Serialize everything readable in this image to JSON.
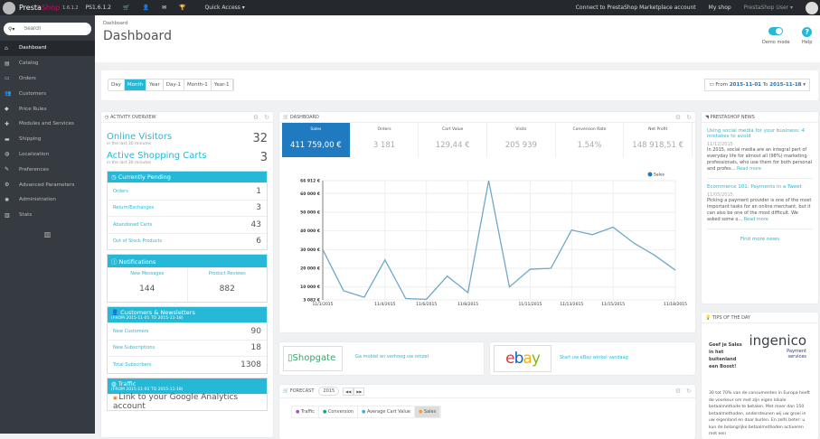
{
  "topbar": {
    "brand_a": "Presta",
    "brand_b": "Shop",
    "version": "1.6.1.2",
    "shop_label": "PS1.6.1.2",
    "quick_access": "Quick Access ▾",
    "connect": "Connect to PrestaShop Marketplace account",
    "my_shop": "My shop",
    "user": "PrestaShop User ▾"
  },
  "sidebar": {
    "search_placeholder": "Search",
    "items": [
      {
        "label": "Dashboard",
        "icon": "home-icon"
      },
      {
        "label": "Catalog",
        "icon": "book-icon"
      },
      {
        "label": "Orders",
        "icon": "credit-card-icon"
      },
      {
        "label": "Customers",
        "icon": "users-icon"
      },
      {
        "label": "Price Rules",
        "icon": "tag-icon"
      },
      {
        "label": "Modules and Services",
        "icon": "puzzle-icon"
      },
      {
        "label": "Shipping",
        "icon": "truck-icon"
      },
      {
        "label": "Localization",
        "icon": "globe-icon"
      },
      {
        "label": "Preferences",
        "icon": "wrench-icon"
      },
      {
        "label": "Advanced Parameters",
        "icon": "cogs-icon"
      },
      {
        "label": "Administration",
        "icon": "gear-icon"
      },
      {
        "label": "Stats",
        "icon": "bar-chart-icon"
      }
    ]
  },
  "header": {
    "breadcrumb": "Dashboard",
    "title": "Dashboard",
    "demo_mode": "Demo mode",
    "help": "Help"
  },
  "filter": {
    "buttons": [
      "Day",
      "Month",
      "Year",
      "Day-1",
      "Month-1",
      "Year-1"
    ],
    "active": "Month",
    "from_label": "From",
    "from": "2015-11-01",
    "to_label": "To",
    "to": "2015-11-18"
  },
  "activity": {
    "title": "Activity overview",
    "visitors_label": "Online Visitors",
    "visitors_sub": "in the last 30 minutes",
    "visitors": "32",
    "carts_label": "Active Shopping Carts",
    "carts_sub": "in the last 30 minutes",
    "carts": "3",
    "pending_title": "Currently Pending",
    "pending": [
      {
        "label": "Orders",
        "value": "1"
      },
      {
        "label": "Return/Exchanges",
        "value": "3"
      },
      {
        "label": "Abandoned Carts",
        "value": "43"
      },
      {
        "label": "Out of Stock Products",
        "value": "6"
      }
    ],
    "notif_title": "Notifications",
    "messages_label": "New Messages",
    "messages": "144",
    "reviews_label": "Product Reviews",
    "reviews": "882",
    "cust_title": "Customers & Newsletters",
    "cust_range": "(FROM 2015-11-01 TO 2015-11-18)",
    "cust": [
      {
        "label": "New Customers",
        "value": "90"
      },
      {
        "label": "New Subscriptions",
        "value": "18"
      },
      {
        "label": "Total Subscribers",
        "value": "1308"
      }
    ],
    "traffic_title": "Traffic",
    "traffic_range": "(FROM 2015-11-01 TO 2015-11-18)",
    "ga_link": "Link to your Google Analytics account"
  },
  "dashboard": {
    "title": "Dashboard",
    "kpis": [
      {
        "label": "Sales",
        "value": "411 759,00 €"
      },
      {
        "label": "Orders",
        "value": "3 181"
      },
      {
        "label": "Cart Value",
        "value": "129,44 €"
      },
      {
        "label": "Visits",
        "value": "205 939"
      },
      {
        "label": "Conversion Rate",
        "value": "1.54%"
      },
      {
        "label": "Net Profit",
        "value": "148 918,51 €"
      }
    ]
  },
  "chart_data": {
    "type": "line",
    "legend": "Sales",
    "legend_position": "top-right",
    "grid": true,
    "x": [
      "11/1/2015",
      "11/2/2015",
      "11/3/2015",
      "11/4/2015",
      "11/5/2015",
      "11/6/2015",
      "11/7/2015",
      "11/8/2015",
      "11/9/2015",
      "11/10/2015",
      "11/11/2015",
      "11/12/2015",
      "11/13/2015",
      "11/14/2015",
      "11/15/2015",
      "11/16/2015",
      "11/17/2015",
      "11/18/2015"
    ],
    "series": [
      {
        "name": "Sales",
        "color": "#6fa8c9",
        "values": [
          30000,
          8000,
          4500,
          24500,
          3800,
          3400,
          15800,
          7000,
          66912,
          10000,
          19500,
          20000,
          40500,
          38000,
          42000,
          33500,
          27000,
          19000
        ]
      }
    ],
    "x_ticks": [
      "11/1/2015",
      "11/4/2015",
      "11/6/2015",
      "11/8/2015",
      "11/11/2015",
      "11/13/2015",
      "11/15/2015",
      "11/18/2015"
    ],
    "y_ticks": [
      "3 082 €",
      "10 000 €",
      "20 000 €",
      "30 000 €",
      "40 000 €",
      "50 000 €",
      "60 000 €",
      "66 912 €"
    ],
    "y_tick_values": [
      3082,
      10000,
      20000,
      30000,
      40000,
      50000,
      60000,
      66912
    ],
    "ylim": [
      3082,
      66912
    ]
  },
  "partners": {
    "shopgate": "Shopgate",
    "shopgate_text": "Ga mobiel en verhoog uw omzet",
    "ebay": "ebay",
    "ebay_text": "Start uw eBay winkel vandaag"
  },
  "forecast": {
    "title": "Forecast",
    "year": "2015",
    "prev": "◀◀",
    "next": "▶▶",
    "tabs": [
      {
        "label": "Traffic",
        "color": "#9b59b6"
      },
      {
        "label": "Conversion",
        "color": "#16a085"
      },
      {
        "label": "Average Cart Value",
        "color": "#3bb0d9"
      },
      {
        "label": "Sales",
        "color": "#f39c4a"
      }
    ]
  },
  "news": {
    "title": "PrestaShop News",
    "items": [
      {
        "title": "Using social media for your business: 4 mistakes to avoid",
        "date": "11/12/2015",
        "text": "In 2015, social media are an integral part of everyday life for almost all (98%) marketing professionals, who use them for both personal and profes...",
        "more": "Read more"
      },
      {
        "title": "Ecommerce 101: Payments in a Tweet",
        "date": "11/05/2015",
        "text": "Picking a payment provider is one of the most important tasks for an online merchant, but it can also be one of the most difficult. We asked some o...",
        "more": "Read more"
      }
    ],
    "find_more": "Find more news"
  },
  "tips": {
    "title": "Tips of the day",
    "logo": "ingenico",
    "logo_sub": "Payment services",
    "headline": "Geef je Sales in het buitenland een Boost!",
    "text": "30 tot 70% van de consumenten in Europa heeft de voorkeur om met zijn eigen lokale betaalmethode te betalen. Met meer dan 150 betaalmethoden, ondersteunen wij uw groei in uw eigenland en daar buiten. En zelfs beter: u kun de belangrijke betaalmethoden activeren met een"
  }
}
